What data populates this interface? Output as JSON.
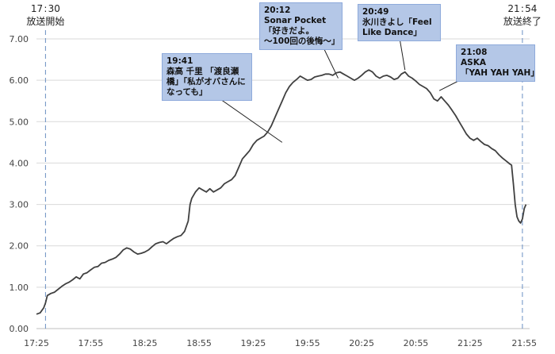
{
  "chart_data": {
    "type": "line",
    "y_ticks": [
      "0.00",
      "1.00",
      "2.00",
      "3.00",
      "4.00",
      "5.00",
      "6.00",
      "7.00"
    ],
    "ylim": [
      0,
      7
    ],
    "x_ticks": [
      "17:25",
      "17:55",
      "18:25",
      "18:55",
      "19:25",
      "19:55",
      "20:25",
      "20:55",
      "21:25",
      "21:55"
    ],
    "x_tick_minutes": [
      1045,
      1075,
      1105,
      1135,
      1165,
      1195,
      1225,
      1255,
      1285,
      1315
    ],
    "xlim_minutes": [
      1045,
      1318
    ],
    "grid": true,
    "series_color": "#404040",
    "start_marker": {
      "time": "17 : 30",
      "label": "放送開始",
      "minute": 1050
    },
    "end_marker": {
      "time": "21 : 54",
      "label": "放送終了",
      "minute": 1314
    },
    "annotations": [
      {
        "lines": [
          "19:41",
          "森高 千里 「渡良瀬",
          "橋」「私がオバさんに",
          "なっても」"
        ],
        "minute": 1181,
        "value": 4.5
      },
      {
        "lines": [
          "20:12",
          "Sonar Pocket",
          "「好きだよ。",
          "～100回の後悔～」"
        ],
        "minute": 1212,
        "value": 6.05
      },
      {
        "lines": [
          "20:49",
          "氷川きよし「Feel",
          "Like Dance」"
        ],
        "minute": 1249,
        "value": 6.25
      },
      {
        "lines": [
          "21:08",
          "ASKA",
          "「YAH YAH YAH」"
        ],
        "minute": 1268,
        "value": 5.75
      }
    ],
    "points": [
      [
        1045,
        0.35
      ],
      [
        1047,
        0.38
      ],
      [
        1049,
        0.5
      ],
      [
        1050,
        0.62
      ],
      [
        1051,
        0.8
      ],
      [
        1053,
        0.85
      ],
      [
        1055,
        0.88
      ],
      [
        1057,
        0.95
      ],
      [
        1059,
        1.02
      ],
      [
        1061,
        1.08
      ],
      [
        1063,
        1.12
      ],
      [
        1065,
        1.18
      ],
      [
        1067,
        1.25
      ],
      [
        1069,
        1.2
      ],
      [
        1071,
        1.32
      ],
      [
        1073,
        1.35
      ],
      [
        1075,
        1.42
      ],
      [
        1077,
        1.48
      ],
      [
        1079,
        1.5
      ],
      [
        1081,
        1.58
      ],
      [
        1083,
        1.6
      ],
      [
        1085,
        1.65
      ],
      [
        1087,
        1.68
      ],
      [
        1089,
        1.72
      ],
      [
        1091,
        1.8
      ],
      [
        1093,
        1.9
      ],
      [
        1095,
        1.95
      ],
      [
        1097,
        1.92
      ],
      [
        1099,
        1.85
      ],
      [
        1101,
        1.8
      ],
      [
        1103,
        1.82
      ],
      [
        1105,
        1.85
      ],
      [
        1107,
        1.9
      ],
      [
        1109,
        1.98
      ],
      [
        1111,
        2.05
      ],
      [
        1113,
        2.08
      ],
      [
        1115,
        2.1
      ],
      [
        1117,
        2.05
      ],
      [
        1119,
        2.12
      ],
      [
        1121,
        2.18
      ],
      [
        1123,
        2.22
      ],
      [
        1125,
        2.25
      ],
      [
        1127,
        2.35
      ],
      [
        1129,
        2.6
      ],
      [
        1130,
        3.0
      ],
      [
        1131,
        3.15
      ],
      [
        1133,
        3.3
      ],
      [
        1135,
        3.4
      ],
      [
        1137,
        3.35
      ],
      [
        1139,
        3.3
      ],
      [
        1141,
        3.38
      ],
      [
        1143,
        3.3
      ],
      [
        1145,
        3.35
      ],
      [
        1147,
        3.4
      ],
      [
        1149,
        3.5
      ],
      [
        1151,
        3.55
      ],
      [
        1153,
        3.6
      ],
      [
        1155,
        3.7
      ],
      [
        1157,
        3.9
      ],
      [
        1159,
        4.1
      ],
      [
        1161,
        4.2
      ],
      [
        1163,
        4.3
      ],
      [
        1165,
        4.45
      ],
      [
        1167,
        4.55
      ],
      [
        1169,
        4.6
      ],
      [
        1171,
        4.65
      ],
      [
        1173,
        4.75
      ],
      [
        1175,
        4.9
      ],
      [
        1177,
        5.1
      ],
      [
        1179,
        5.3
      ],
      [
        1181,
        5.5
      ],
      [
        1183,
        5.7
      ],
      [
        1185,
        5.85
      ],
      [
        1187,
        5.95
      ],
      [
        1189,
        6.02
      ],
      [
        1191,
        6.1
      ],
      [
        1193,
        6.05
      ],
      [
        1195,
        6.0
      ],
      [
        1197,
        6.02
      ],
      [
        1199,
        6.08
      ],
      [
        1201,
        6.1
      ],
      [
        1203,
        6.12
      ],
      [
        1205,
        6.15
      ],
      [
        1207,
        6.15
      ],
      [
        1209,
        6.12
      ],
      [
        1211,
        6.18
      ],
      [
        1213,
        6.2
      ],
      [
        1215,
        6.15
      ],
      [
        1217,
        6.1
      ],
      [
        1219,
        6.05
      ],
      [
        1221,
        6.0
      ],
      [
        1223,
        6.05
      ],
      [
        1225,
        6.12
      ],
      [
        1227,
        6.2
      ],
      [
        1229,
        6.25
      ],
      [
        1231,
        6.2
      ],
      [
        1233,
        6.1
      ],
      [
        1235,
        6.05
      ],
      [
        1237,
        6.1
      ],
      [
        1239,
        6.12
      ],
      [
        1241,
        6.08
      ],
      [
        1243,
        6.02
      ],
      [
        1245,
        6.05
      ],
      [
        1247,
        6.15
      ],
      [
        1249,
        6.2
      ],
      [
        1251,
        6.1
      ],
      [
        1253,
        6.05
      ],
      [
        1255,
        5.98
      ],
      [
        1257,
        5.9
      ],
      [
        1259,
        5.85
      ],
      [
        1261,
        5.8
      ],
      [
        1263,
        5.7
      ],
      [
        1265,
        5.55
      ],
      [
        1267,
        5.5
      ],
      [
        1269,
        5.6
      ],
      [
        1271,
        5.5
      ],
      [
        1273,
        5.4
      ],
      [
        1275,
        5.28
      ],
      [
        1277,
        5.15
      ],
      [
        1279,
        5.0
      ],
      [
        1281,
        4.85
      ],
      [
        1283,
        4.7
      ],
      [
        1285,
        4.6
      ],
      [
        1287,
        4.55
      ],
      [
        1289,
        4.6
      ],
      [
        1291,
        4.52
      ],
      [
        1293,
        4.45
      ],
      [
        1295,
        4.42
      ],
      [
        1297,
        4.35
      ],
      [
        1299,
        4.3
      ],
      [
        1301,
        4.2
      ],
      [
        1303,
        4.12
      ],
      [
        1305,
        4.05
      ],
      [
        1307,
        3.98
      ],
      [
        1308,
        3.95
      ],
      [
        1309,
        3.5
      ],
      [
        1310,
        3.0
      ],
      [
        1311,
        2.7
      ],
      [
        1312,
        2.6
      ],
      [
        1313,
        2.55
      ],
      [
        1314,
        2.65
      ],
      [
        1315,
        2.9
      ],
      [
        1316,
        3.0
      ]
    ]
  }
}
